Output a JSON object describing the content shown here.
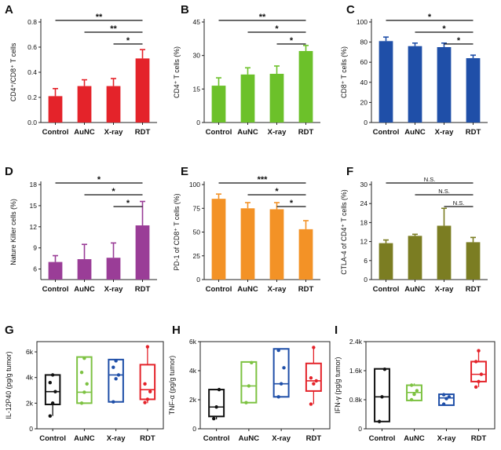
{
  "categories": [
    "Control",
    "AuNC",
    "X-ray",
    "RDT"
  ],
  "chart_data": [
    {
      "panel": "A",
      "type": "bar",
      "color": "#e4232a",
      "ylabel": "CD4⁺/CD8⁺ T cells",
      "ylim": [
        0,
        0.8
      ],
      "yticks": [
        0.0,
        0.2,
        0.4,
        0.6,
        0.8
      ],
      "ytick_labels": [
        "0.0",
        "0.2",
        "0.4",
        "0.6",
        "0.8"
      ],
      "values": [
        0.21,
        0.29,
        0.29,
        0.51
      ],
      "errors": [
        0.06,
        0.05,
        0.06,
        0.07
      ],
      "significance": [
        {
          "from": "Control",
          "to": "RDT",
          "label": "**"
        },
        {
          "from": "AuNC",
          "to": "RDT",
          "label": "**"
        },
        {
          "from": "X-ray",
          "to": "RDT",
          "label": "*"
        }
      ]
    },
    {
      "panel": "B",
      "type": "bar",
      "color": "#6cc12a",
      "ylabel": "CD4⁺ T cells (%)",
      "ylim": [
        0,
        45
      ],
      "yticks": [
        0,
        15,
        30,
        45
      ],
      "ytick_labels": [
        "0",
        "15",
        "30",
        "45"
      ],
      "values": [
        16.5,
        21.5,
        21.8,
        32.0
      ],
      "errors": [
        3.5,
        3.0,
        3.5,
        2.5
      ],
      "significance": [
        {
          "from": "Control",
          "to": "RDT",
          "label": "**"
        },
        {
          "from": "AuNC",
          "to": "RDT",
          "label": "*"
        },
        {
          "from": "X-ray",
          "to": "RDT",
          "label": "*"
        }
      ]
    },
    {
      "panel": "C",
      "type": "bar",
      "color": "#1f4fa8",
      "ylabel": "CD8⁺ T cells (%)",
      "ylim": [
        0,
        100
      ],
      "yticks": [
        0,
        20,
        40,
        60,
        80,
        100
      ],
      "ytick_labels": [
        "0",
        "20",
        "40",
        "60",
        "80",
        "100"
      ],
      "values": [
        81,
        76,
        75,
        64
      ],
      "errors": [
        4,
        3,
        4,
        3
      ],
      "significance": [
        {
          "from": "Control",
          "to": "RDT",
          "label": "*"
        },
        {
          "from": "AuNC",
          "to": "RDT",
          "label": "*"
        },
        {
          "from": "X-ray",
          "to": "RDT",
          "label": "*"
        }
      ]
    },
    {
      "panel": "D",
      "type": "bar",
      "color": "#9a3d97",
      "ylabel": "Nature Killer cells (%)",
      "ylim": [
        4.5,
        18
      ],
      "yticks": [
        6,
        9,
        12,
        15,
        18
      ],
      "ytick_labels": [
        "6",
        "9",
        "12",
        "15",
        "18"
      ],
      "values": [
        7.0,
        7.4,
        7.6,
        12.2
      ],
      "errors": [
        0.9,
        2.1,
        2.1,
        3.4
      ],
      "significance": [
        {
          "from": "Control",
          "to": "RDT",
          "label": "*"
        },
        {
          "from": "AuNC",
          "to": "RDT",
          "label": "*"
        },
        {
          "from": "X-ray",
          "to": "RDT",
          "label": "*"
        }
      ]
    },
    {
      "panel": "E",
      "type": "bar",
      "color": "#f39226",
      "ylabel": "PD-1 of CD8⁺ T cells (%)",
      "ylim": [
        0,
        100
      ],
      "yticks": [
        0,
        25,
        50,
        75,
        100
      ],
      "ytick_labels": [
        "0",
        "25",
        "50",
        "75",
        "100"
      ],
      "values": [
        85,
        75,
        74,
        53
      ],
      "errors": [
        5,
        6,
        7,
        9
      ],
      "significance": [
        {
          "from": "Control",
          "to": "RDT",
          "label": "***"
        },
        {
          "from": "AuNC",
          "to": "RDT",
          "label": "*"
        },
        {
          "from": "X-ray",
          "to": "RDT",
          "label": "*"
        }
      ]
    },
    {
      "panel": "F",
      "type": "bar",
      "color": "#7b7d22",
      "ylabel": "CTLA-4 of CD4⁺ T cells (%)",
      "ylim": [
        0,
        30
      ],
      "yticks": [
        0,
        6,
        12,
        18,
        24,
        30
      ],
      "ytick_labels": [
        "0",
        "6",
        "12",
        "18",
        "24",
        "30"
      ],
      "values": [
        11.5,
        13.8,
        17.0,
        11.8
      ],
      "errors": [
        1.0,
        0.5,
        5.5,
        1.5
      ],
      "significance": [
        {
          "from": "Control",
          "to": "RDT",
          "label": "N.S."
        },
        {
          "from": "AuNC",
          "to": "RDT",
          "label": "N.S."
        },
        {
          "from": "X-ray",
          "to": "RDT",
          "label": "N.S."
        }
      ]
    },
    {
      "panel": "G",
      "type": "box",
      "ylabel": "IL-12P40 (pg/g tumor)",
      "ylim": [
        0,
        6800
      ],
      "yticks": [
        0,
        2000,
        4000,
        6000
      ],
      "ytick_labels": [
        "0",
        "2k",
        "4k",
        "6k"
      ],
      "colors": [
        "#111111",
        "#7dc242",
        "#1f4fa8",
        "#e4232a"
      ],
      "boxes": [
        {
          "min": 1000,
          "q1": 1900,
          "median": 2900,
          "q3": 4200,
          "max": 4300,
          "points": [
            1000,
            2000,
            2900,
            3600,
            4200
          ]
        },
        {
          "min": 1950,
          "q1": 2000,
          "median": 2850,
          "q3": 5600,
          "max": 5600,
          "points": [
            2000,
            2850,
            3500,
            4400,
            5500
          ]
        },
        {
          "min": 2100,
          "q1": 2100,
          "median": 4200,
          "q3": 5400,
          "max": 5400,
          "points": [
            2100,
            3900,
            4200,
            4800,
            5300
          ]
        },
        {
          "min": 2000,
          "q1": 2300,
          "median": 3050,
          "q3": 5000,
          "max": 6500,
          "points": [
            2050,
            2300,
            2900,
            3500,
            6400
          ]
        }
      ]
    },
    {
      "panel": "H",
      "type": "box",
      "ylabel": "TNF-α (pg/g tumor)",
      "ylim": [
        0,
        6000
      ],
      "yticks": [
        0,
        2000,
        4000,
        6000
      ],
      "ytick_labels": [
        "0",
        "2k",
        "4k",
        "6k"
      ],
      "colors": [
        "#111111",
        "#7dc242",
        "#1f4fa8",
        "#e4232a"
      ],
      "boxes": [
        {
          "min": 650,
          "q1": 850,
          "median": 1500,
          "q3": 2700,
          "max": 2750,
          "points": [
            700,
            1500,
            2700
          ]
        },
        {
          "min": 1800,
          "q1": 1800,
          "median": 2950,
          "q3": 4600,
          "max": 4600,
          "points": [
            1800,
            2950,
            4550
          ]
        },
        {
          "min": 2200,
          "q1": 2200,
          "median": 3100,
          "q3": 5500,
          "max": 5500,
          "points": [
            2200,
            3100,
            4200,
            5400
          ]
        },
        {
          "min": 1700,
          "q1": 2600,
          "median": 3300,
          "q3": 4500,
          "max": 5600,
          "points": [
            1700,
            3100,
            3300,
            3500,
            5600
          ]
        }
      ]
    },
    {
      "panel": "I",
      "type": "box",
      "ylabel": "IFN-γ (pg/g tumor)",
      "ylim": [
        0,
        2400
      ],
      "yticks": [
        0,
        800,
        1600,
        2400
      ],
      "ytick_labels": [
        "0",
        "0.8k",
        "1.6k",
        "2.4k"
      ],
      "colors": [
        "#111111",
        "#7dc242",
        "#1f4fa8",
        "#e4232a"
      ],
      "boxes": [
        {
          "min": 200,
          "q1": 200,
          "median": 880,
          "q3": 1650,
          "max": 1650,
          "points": [
            200,
            880,
            1640
          ]
        },
        {
          "min": 780,
          "q1": 780,
          "median": 1000,
          "q3": 1200,
          "max": 1250,
          "points": [
            800,
            950,
            1050,
            1200
          ]
        },
        {
          "min": 650,
          "q1": 650,
          "median": 850,
          "q3": 950,
          "max": 950,
          "points": [
            680,
            830,
            880,
            940
          ]
        },
        {
          "min": 1150,
          "q1": 1300,
          "median": 1500,
          "q3": 1850,
          "max": 2150,
          "points": [
            1150,
            1300,
            1500,
            1850,
            2150
          ]
        }
      ]
    }
  ]
}
